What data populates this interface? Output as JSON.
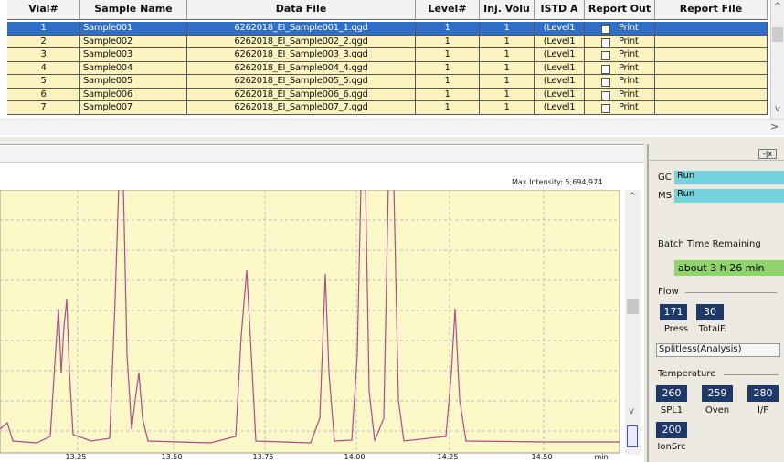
{
  "table": {
    "headers": [
      "Vial#",
      "Sample Name",
      "Data File",
      "Level#",
      "Inj. Volu",
      "ISTD A",
      "Report Out",
      "Report File"
    ],
    "rows": [
      [
        "1",
        "Sample001",
        "6262018_EI_Sample001_1.qgd",
        "1",
        "1",
        "(Level1",
        "Print"
      ],
      [
        "2",
        "Sample002",
        "6262018_EI_Sample002_2.qgd",
        "1",
        "1",
        "(Level1",
        "Print"
      ],
      [
        "3",
        "Sample003",
        "6262018_EI_Sample003_3.qgd",
        "1",
        "1",
        "(Level1",
        "Print"
      ],
      [
        "4",
        "Sample004",
        "6262018_EI_Sample004_4.qgd",
        "1",
        "1",
        "(Level1",
        "Print"
      ],
      [
        "5",
        "Sample005",
        "6262018_EI_Sample005_5.qgd",
        "1",
        "1",
        "(Level1",
        "Print"
      ],
      [
        "6",
        "Sample006",
        "6262018_EI_Sample006_6.qgd",
        "1",
        "1",
        "(Level1",
        "Print"
      ],
      [
        "7",
        "Sample007",
        "6262018_EI_Sample007_7.qgd",
        "1",
        "1",
        "(Level1",
        "Print"
      ]
    ]
  },
  "chromatogram": {
    "max_intensity": "Max Intensity: 5,694,974",
    "x_labels": [
      "13.25",
      "13.50",
      "13.75",
      "14.00",
      "14.25",
      "14.50",
      "min"
    ]
  },
  "status": {
    "gc_label": "GC",
    "gc_state": "Run",
    "ms_label": "MS",
    "ms_state": "Run",
    "batch_label": "Batch Time Remaining",
    "batch_time": "about 3 h 26 min",
    "flow_label": "Flow",
    "flow_values": [
      "171",
      "30"
    ],
    "flow_names": [
      "Press",
      "TotalF."
    ],
    "mode": "Splitless(Analysis)",
    "temp_label": "Temperature",
    "temp_values": [
      "260",
      "259",
      "280",
      "200"
    ],
    "temp_names": [
      "SPL1",
      "Oven",
      "I/F",
      "IonSrc"
    ]
  }
}
